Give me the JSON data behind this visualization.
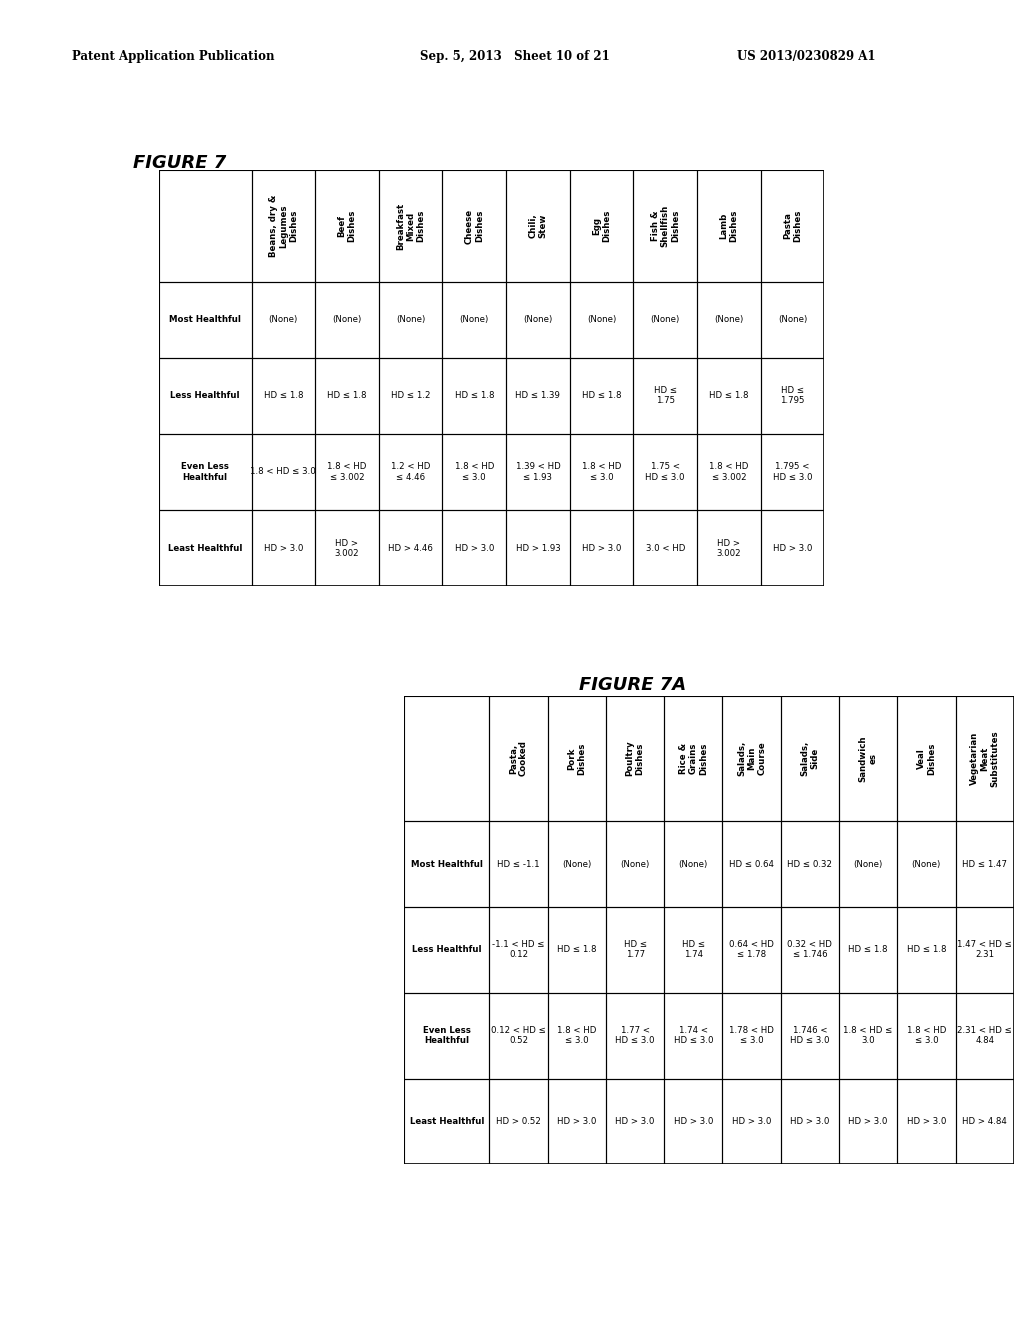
{
  "header_left": "Patent Application Publication",
  "header_mid": "Sep. 5, 2013   Sheet 10 of 21",
  "header_right": "US 2013/0230829 A1",
  "figure7_title": "FIGURE 7",
  "figure7a_title": "FIGURE 7A",
  "table1": {
    "col_headers": [
      "Beans, dry &\nLegumes\nDishes",
      "Beef\nDishes",
      "Breakfast\nMixed\nDishes",
      "Cheese\nDishes",
      "Chili,\nStew",
      "Egg\nDishes",
      "Fish &\nShellfish\nDishes",
      "Lamb\nDishes",
      "Pasta\nDishes"
    ],
    "row_headers": [
      "Most Healthful",
      "Less Healthful",
      "Even Less\nHealthful",
      "Least Healthful"
    ],
    "cells": [
      [
        "(None)",
        "(None)",
        "(None)",
        "(None)",
        "(None)",
        "(None)",
        "(None)",
        "(None)",
        "(None)"
      ],
      [
        "HD ≤ 1.8",
        "HD ≤ 1.8",
        "HD ≤ 1.2",
        "HD ≤ 1.8",
        "HD ≤ 1.39",
        "HD ≤ 1.8",
        "HD ≤\n1.75",
        "HD ≤ 1.8",
        "HD ≤\n1.795"
      ],
      [
        "1.8 < HD ≤ 3.0",
        "1.8 < HD\n≤ 3.002",
        "1.2 < HD\n≤ 4.46",
        "1.8 < HD\n≤ 3.0",
        "1.39 < HD\n≤ 1.93",
        "1.8 < HD\n≤ 3.0",
        "1.75 <\nHD ≤ 3.0",
        "1.8 < HD\n≤ 3.002",
        "1.795 <\nHD ≤ 3.0"
      ],
      [
        "HD > 3.0",
        "HD >\n3.002",
        "HD > 4.46",
        "HD > 3.0",
        "HD > 1.93",
        "HD > 3.0",
        "3.0 < HD",
        "HD >\n3.002",
        "HD > 3.0"
      ]
    ]
  },
  "table2": {
    "col_headers": [
      "Pasta,\nCooked",
      "Pork\nDishes",
      "Poultry\nDishes",
      "Rice &\nGrains\nDishes",
      "Salads,\nMain\nCourse",
      "Salads,\nSide",
      "Sandwich\nes",
      "Veal\nDishes",
      "Vegetarian\nMeat\nSubstitutes"
    ],
    "row_headers": [
      "Most Healthful",
      "Less Healthful",
      "Even Less\nHealthful",
      "Least Healthful"
    ],
    "cells": [
      [
        "HD ≤ -1.1",
        "(None)",
        "(None)",
        "(None)",
        "HD ≤ 0.64",
        "HD ≤ 0.32",
        "(None)",
        "(None)",
        "HD ≤ 1.47"
      ],
      [
        "-1.1 < HD ≤\n0.12",
        "HD ≤ 1.8",
        "HD ≤\n1.77",
        "HD ≤\n1.74",
        "0.64 < HD\n≤ 1.78",
        "0.32 < HD\n≤ 1.746",
        "HD ≤ 1.8",
        "HD ≤ 1.8",
        "1.47 < HD ≤\n2.31"
      ],
      [
        "0.12 < HD ≤\n0.52",
        "1.8 < HD\n≤ 3.0",
        "1.77 <\nHD ≤ 3.0",
        "1.74 <\nHD ≤ 3.0",
        "1.78 < HD\n≤ 3.0",
        "1.746 <\nHD ≤ 3.0",
        "1.8 < HD ≤\n3.0",
        "1.8 < HD\n≤ 3.0",
        "2.31 < HD ≤\n4.84"
      ],
      [
        "HD > 0.52",
        "HD > 3.0",
        "HD > 3.0",
        "HD > 3.0",
        "HD > 3.0",
        "HD > 3.0",
        "HD > 3.0",
        "HD > 3.0",
        "HD > 4.84"
      ]
    ]
  }
}
